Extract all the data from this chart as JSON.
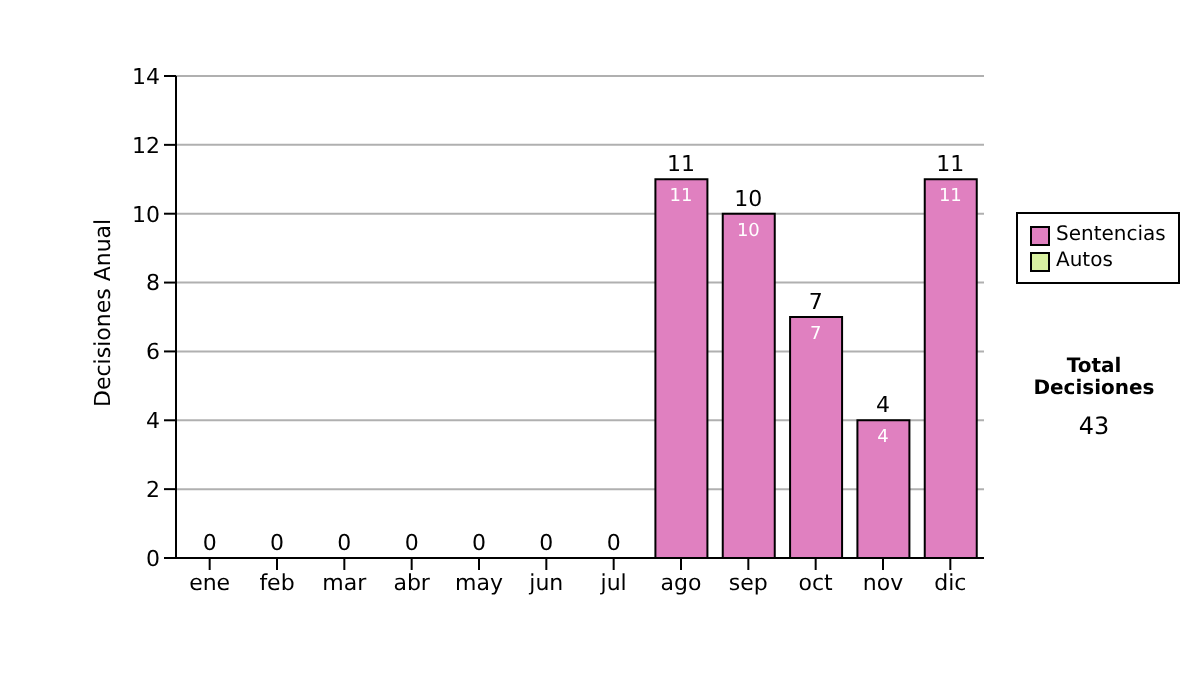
{
  "chart_data": {
    "type": "bar",
    "ylabel": "Decisiones Anual",
    "categories": [
      "ene",
      "feb",
      "mar",
      "abr",
      "may",
      "jun",
      "jul",
      "ago",
      "sep",
      "oct",
      "nov",
      "dic"
    ],
    "series": [
      {
        "name": "Sentencias",
        "color": "#e080c0",
        "values": [
          0,
          0,
          0,
          0,
          0,
          0,
          0,
          11,
          10,
          7,
          4,
          11
        ],
        "value_labels": [
          null,
          null,
          null,
          null,
          null,
          null,
          null,
          "11",
          "10",
          "7",
          "4",
          "11"
        ]
      },
      {
        "name": "Autos",
        "color": "#d8f0a0",
        "values": [
          0,
          0,
          0,
          0,
          0,
          0,
          0,
          0,
          0,
          0,
          0,
          0
        ]
      }
    ],
    "stacked": true,
    "totals": [
      "0",
      "0",
      "0",
      "0",
      "0",
      "0",
      "0",
      "11",
      "10",
      "7",
      "4",
      "11"
    ],
    "ylim": [
      0,
      14
    ],
    "yticks": [
      0,
      2,
      4,
      6,
      8,
      10,
      12,
      14
    ],
    "grid": "y",
    "legend": "right",
    "annotations": [
      "Total Decisiones",
      "43"
    ]
  }
}
